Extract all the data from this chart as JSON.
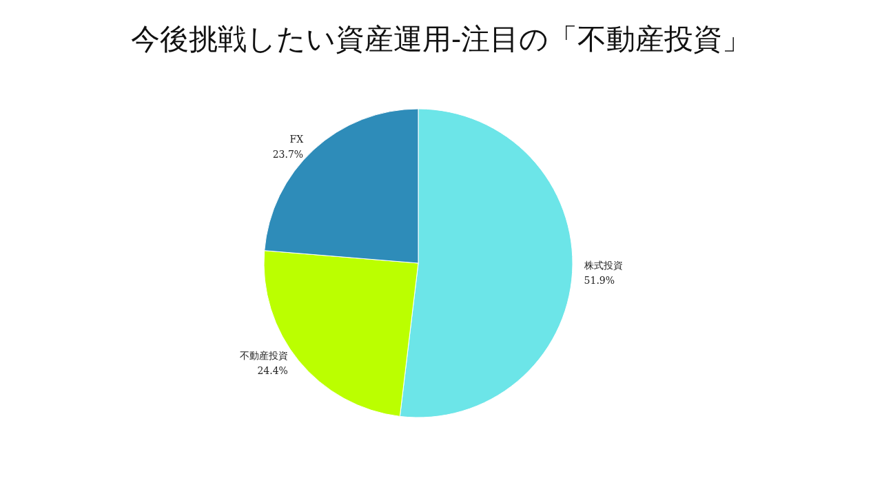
{
  "chart_data": {
    "type": "pie",
    "title": "今後挑戦したい資産運用-注目の「不動産投資」",
    "categories": [
      "株式投資",
      "不動産投資",
      "FX"
    ],
    "values": [
      51.9,
      24.4,
      23.7
    ],
    "colors": [
      "#6ce5e8",
      "#bbff00",
      "#2e8cb9"
    ],
    "value_labels": [
      "51.9%",
      "24.4%",
      "23.7%"
    ]
  }
}
